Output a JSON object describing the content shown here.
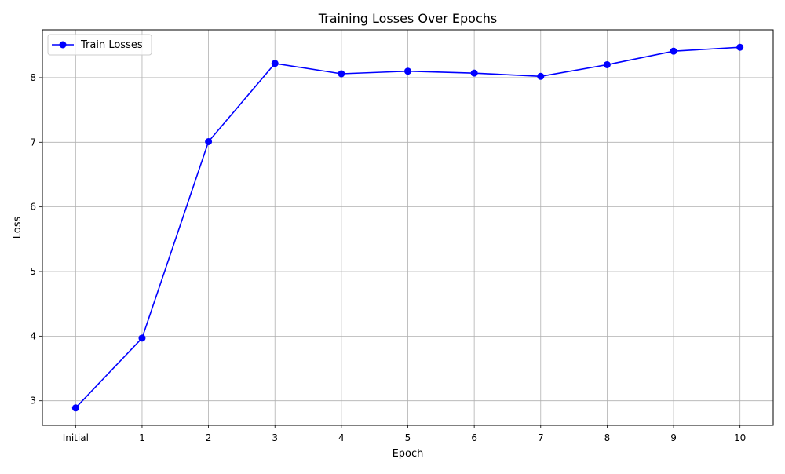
{
  "chart_data": {
    "type": "line",
    "title": "Training Losses Over Epochs",
    "xlabel": "Epoch",
    "ylabel": "Loss",
    "categories": [
      "Initial",
      "1",
      "2",
      "3",
      "4",
      "5",
      "6",
      "7",
      "8",
      "9",
      "10"
    ],
    "series": [
      {
        "name": "Train Losses",
        "color": "#0000ff",
        "marker": "circle",
        "values": [
          2.89,
          3.97,
          7.01,
          8.22,
          8.06,
          8.1,
          8.07,
          8.02,
          8.2,
          8.41,
          8.47
        ]
      }
    ],
    "ylim": [
      2.62,
      8.74
    ],
    "yticks": [
      3,
      4,
      5,
      6,
      7,
      8
    ],
    "grid": true,
    "legend_position": "top-left"
  }
}
